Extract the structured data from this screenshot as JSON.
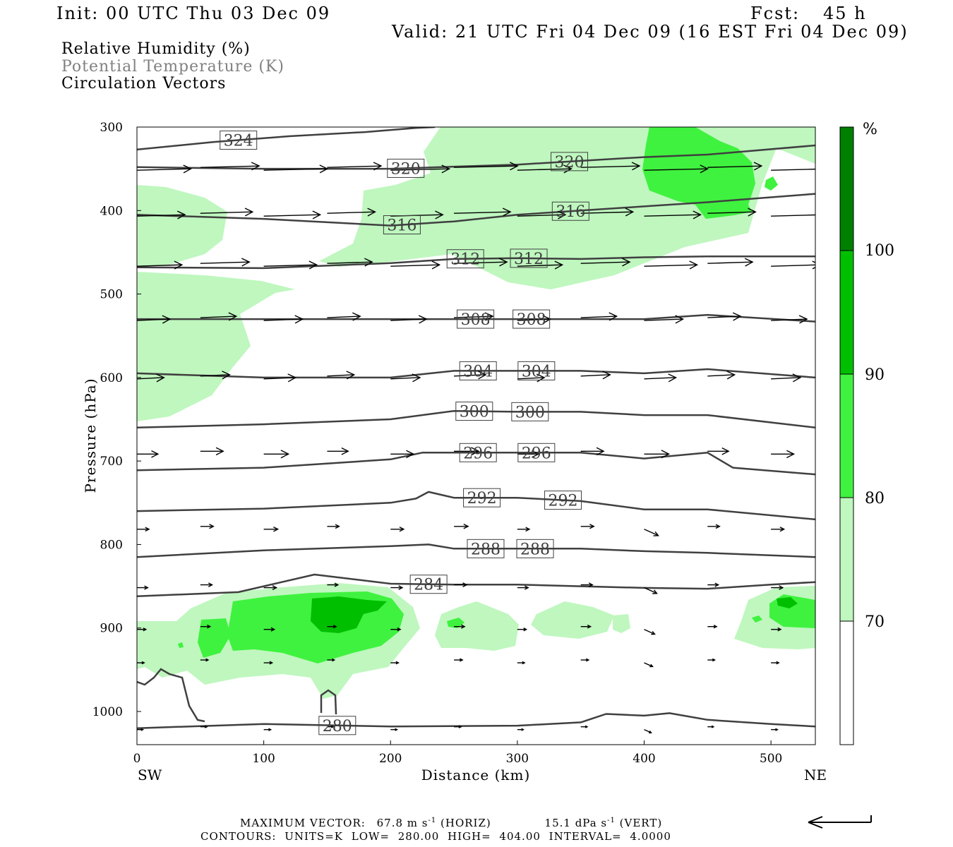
{
  "header": {
    "init": "Init: 00 UTC Thu 03 Dec 09",
    "fcst_label": "Fcst:",
    "fcst_value": "45 h",
    "valid": "Valid: 21 UTC Fri 04 Dec 09 (16 EST Fri 04 Dec 09)"
  },
  "legend": {
    "rh": "Relative Humidity (%)",
    "theta": "Potential Temperature (K)",
    "vectors": "Circulation Vectors"
  },
  "footer": {
    "max_vector_label": "MAXIMUM VECTOR:",
    "horiz_value": "67.8 m s",
    "horiz_sup": "-1",
    "horiz_unit": "(HORIZ)",
    "vert_value": "15.1 dPa s",
    "vert_sup": "-1",
    "vert_unit": "(VERT)",
    "contours": "CONTOURS: UNITS=K LOW= 280.00 HIGH= 404.00 INTERVAL= 4.0000"
  },
  "colors": {
    "rh_70": "#bff7bf",
    "rh_80": "#3ff23f",
    "rh_90": "#00bf00",
    "rh_100": "#008000",
    "contour": "#404040"
  },
  "chart_data": {
    "type": "cross-section",
    "xlabel": "Distance (km)",
    "ylabel": "Pressure (hPa)",
    "xlim": [
      0,
      535
    ],
    "ylim": [
      1040,
      300
    ],
    "x_ticks": [
      "0",
      "100",
      "200",
      "300",
      "400",
      "500"
    ],
    "y_ticks": [
      "300",
      "400",
      "500",
      "600",
      "700",
      "800",
      "900",
      "1000"
    ],
    "x_end_labels": {
      "left": "SW",
      "right": "NE"
    },
    "colorbar": {
      "unit": "%",
      "levels": [
        "70",
        "80",
        "90",
        "100"
      ]
    },
    "theta_contours": [
      {
        "label": "324",
        "p": [
          327,
          318,
          311,
          306,
          301,
          300
        ],
        "x": [
          0,
          60,
          120,
          180,
          220,
          235
        ],
        "labels_at": [
          80
        ]
      },
      {
        "label": "320",
        "x": [
          0,
          100,
          200,
          300,
          400,
          450,
          535
        ],
        "p": [
          348,
          350,
          350,
          345,
          336,
          333,
          322
        ],
        "labels_at": [
          212,
          341
        ]
      },
      {
        "label": "316",
        "x": [
          0,
          100,
          200,
          250,
          300,
          400,
          450,
          535
        ],
        "p": [
          405,
          410,
          418,
          413,
          405,
          395,
          390,
          380
        ],
        "labels_at": [
          209,
          342
        ]
      },
      {
        "label": "312",
        "x": [
          0,
          100,
          200,
          250,
          300,
          350,
          400,
          450,
          535
        ],
        "p": [
          468,
          469,
          463,
          458,
          457,
          458,
          456,
          455,
          455
        ],
        "labels_at": [
          259,
          309
        ]
      },
      {
        "label": "308",
        "x": [
          0,
          100,
          200,
          250,
          300,
          350,
          400,
          450,
          535
        ],
        "p": [
          530,
          530,
          530,
          530,
          530,
          530,
          530,
          525,
          533
        ],
        "labels_at": [
          267,
          311
        ]
      },
      {
        "label": "304",
        "x": [
          0,
          100,
          200,
          225,
          250,
          300,
          350,
          400,
          450,
          535
        ],
        "p": [
          595,
          600,
          600,
          596,
          592,
          592,
          592,
          595,
          590,
          600
        ],
        "labels_at": [
          269,
          315
        ]
      },
      {
        "label": "300",
        "x": [
          0,
          100,
          200,
          250,
          300,
          350,
          400,
          450,
          535
        ],
        "p": [
          660,
          656,
          650,
          640,
          641,
          641,
          645,
          645,
          660
        ],
        "labels_at": [
          266,
          310
        ]
      },
      {
        "label": "296",
        "x": [
          0,
          100,
          200,
          225,
          250,
          300,
          350,
          400,
          450,
          470,
          535
        ],
        "p": [
          711,
          708,
          698,
          690,
          690,
          690,
          690,
          697,
          690,
          708,
          716
        ],
        "labels_at": [
          269,
          315
        ]
      },
      {
        "label": "292",
        "x": [
          0,
          100,
          200,
          220,
          230,
          250,
          300,
          350,
          400,
          450,
          535
        ],
        "p": [
          760,
          757,
          750,
          745,
          737,
          744,
          744,
          748,
          758,
          758,
          770
        ],
        "labels_at": [
          272,
          336
        ]
      },
      {
        "label": "288",
        "x": [
          0,
          100,
          200,
          230,
          250,
          300,
          350,
          400,
          450,
          535
        ],
        "p": [
          815,
          807,
          802,
          800,
          805,
          805,
          805,
          808,
          810,
          815
        ],
        "labels_at": [
          275,
          314
        ]
      },
      {
        "label": "284",
        "x": [
          0,
          80,
          140,
          200,
          250,
          300,
          350,
          400,
          450,
          500,
          535
        ],
        "p": [
          862,
          857,
          836,
          847,
          848,
          848,
          850,
          852,
          853,
          848,
          845
        ],
        "labels_at": [
          230
        ]
      },
      {
        "label": "280",
        "x": [
          0,
          100,
          200,
          300,
          350,
          370,
          400,
          420,
          450,
          500,
          535
        ],
        "p": [
          1020,
          1015,
          1018,
          1017,
          1013,
          1003,
          1005,
          1002,
          1010,
          1015,
          1018
        ],
        "labels_at": [
          158
        ]
      }
    ],
    "vector_rows_hpa": [
      350,
      405,
      465,
      530,
      600,
      690,
      780,
      850,
      900,
      940,
      1020
    ],
    "max_vector": {
      "horiz_ms": 67.8,
      "vert_dpas": 15.1
    }
  }
}
